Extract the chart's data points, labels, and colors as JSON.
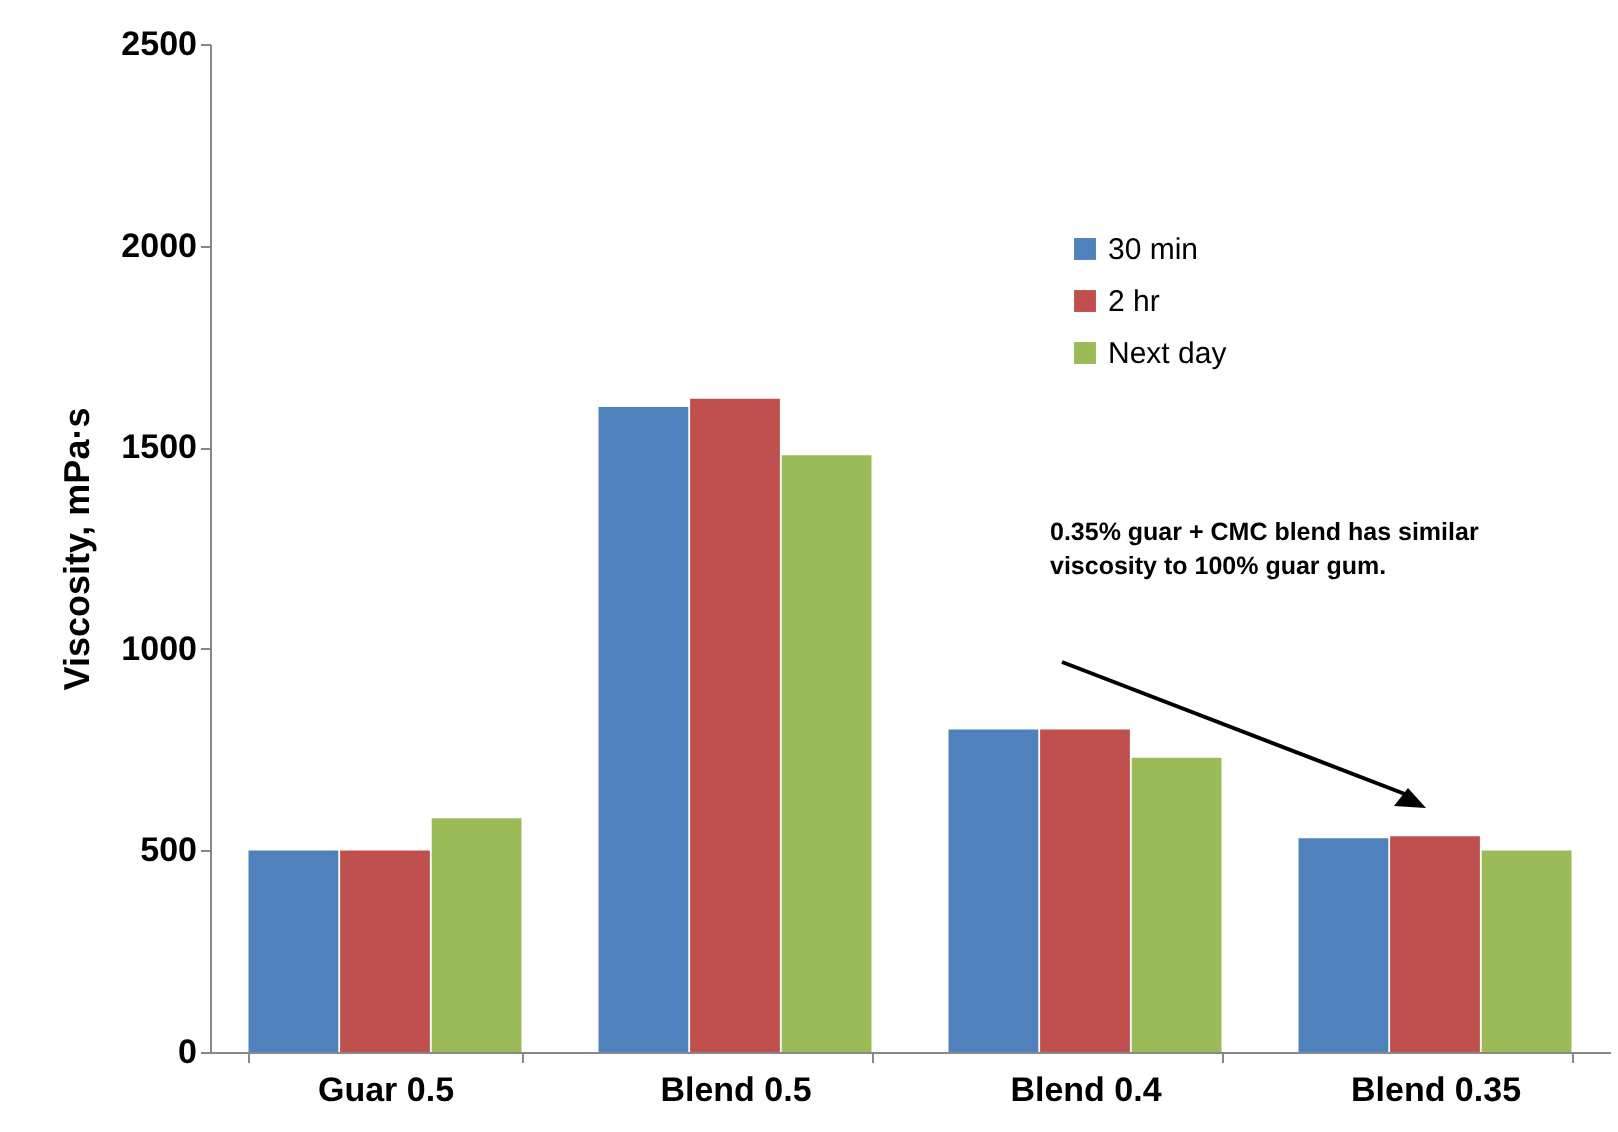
{
  "chart_data": {
    "type": "bar",
    "ylabel": "Viscosity, mPa·s",
    "categories": [
      "Guar 0.5",
      "Blend 0.5",
      "Blend 0.4",
      "Blend 0.35"
    ],
    "series": [
      {
        "name": "30 min",
        "color": "#4f81bd",
        "values": [
          500,
          1600,
          800,
          530
        ]
      },
      {
        "name": "2 hr",
        "color": "#c0504d",
        "values": [
          500,
          1620,
          800,
          535
        ]
      },
      {
        "name": "Next day",
        "color": "#9bbb59",
        "values": [
          580,
          1480,
          730,
          500
        ]
      }
    ],
    "ylim": [
      0,
      2500
    ],
    "yticks": [
      0,
      500,
      1000,
      1500,
      2000,
      2500
    ],
    "grid": false,
    "legend": "top right",
    "annotations": [
      "0.35% guar + CMC blend has similar viscosity to 100% guar gum."
    ]
  }
}
